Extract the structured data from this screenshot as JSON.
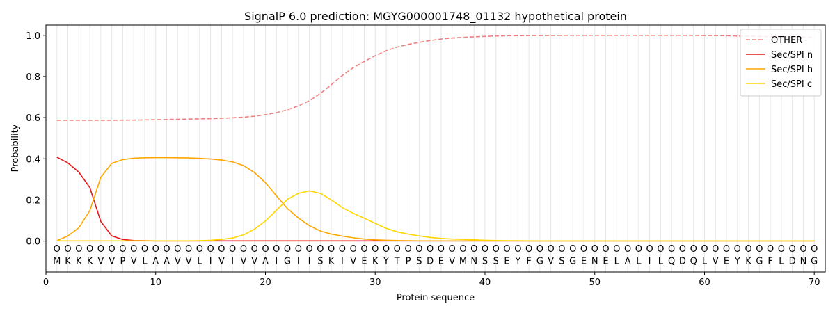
{
  "chart_data": {
    "type": "line",
    "title": "SignalP 6.0 prediction: MGYG000001748_01132 hypothetical protein",
    "xlabel": "Protein sequence",
    "ylabel": "Probability",
    "xlim": [
      0,
      71
    ],
    "ylim": [
      -0.15,
      1.05
    ],
    "xticks": [
      0,
      10,
      20,
      30,
      40,
      50,
      60,
      70
    ],
    "yticks": [
      0.0,
      0.2,
      0.4,
      0.6,
      0.8,
      1.0
    ],
    "ytick_labels": [
      "0.0",
      "0.2",
      "0.4",
      "0.6",
      "0.8",
      "1.0"
    ],
    "legend_position": "top-right",
    "x": [
      1,
      2,
      3,
      4,
      5,
      6,
      7,
      8,
      9,
      10,
      11,
      12,
      13,
      14,
      15,
      16,
      17,
      18,
      19,
      20,
      21,
      22,
      23,
      24,
      25,
      26,
      27,
      28,
      29,
      30,
      31,
      32,
      33,
      34,
      35,
      36,
      37,
      38,
      39,
      40,
      41,
      42,
      43,
      44,
      45,
      46,
      47,
      48,
      49,
      50,
      51,
      52,
      53,
      54,
      55,
      56,
      57,
      58,
      59,
      60,
      61,
      62,
      63,
      64,
      65,
      66,
      67,
      68,
      69,
      70
    ],
    "sequence": [
      "M",
      "K",
      "K",
      "K",
      "V",
      "V",
      "P",
      "V",
      "L",
      "A",
      "A",
      "V",
      "V",
      "L",
      "I",
      "V",
      "I",
      "V",
      "V",
      "A",
      "I",
      "G",
      "I",
      "I",
      "S",
      "K",
      "I",
      "V",
      "E",
      "K",
      "Y",
      "T",
      "P",
      "S",
      "D",
      "E",
      "V",
      "M",
      "N",
      "S",
      "S",
      "E",
      "Y",
      "F",
      "G",
      "V",
      "S",
      "G",
      "E",
      "N",
      "E",
      "L",
      "A",
      "L",
      "I",
      "L",
      "Q",
      "D",
      "Q",
      "L",
      "V",
      "E",
      "Y",
      "K",
      "G",
      "F",
      "L",
      "D",
      "N",
      "G"
    ],
    "position_marker": "O",
    "series": [
      {
        "name": "OTHER",
        "color": "#f08080",
        "dashed": true,
        "values": [
          0.587,
          0.587,
          0.587,
          0.587,
          0.587,
          0.587,
          0.588,
          0.588,
          0.589,
          0.59,
          0.591,
          0.592,
          0.593,
          0.594,
          0.595,
          0.597,
          0.599,
          0.602,
          0.607,
          0.614,
          0.624,
          0.638,
          0.657,
          0.682,
          0.717,
          0.76,
          0.805,
          0.843,
          0.873,
          0.901,
          0.925,
          0.943,
          0.956,
          0.966,
          0.975,
          0.982,
          0.987,
          0.99,
          0.993,
          0.995,
          0.997,
          0.998,
          0.998,
          0.999,
          0.999,
          0.999,
          1.0,
          1.0,
          1.0,
          1.0,
          1.0,
          1.0,
          1.0,
          1.0,
          1.0,
          1.0,
          1.0,
          1.0,
          1.0,
          0.999,
          0.999,
          0.998,
          0.997,
          0.996,
          0.995,
          0.994,
          0.993,
          0.992,
          0.991,
          0.99
        ]
      },
      {
        "name": "Sec/SPI n",
        "color": "#e31a1c",
        "dashed": false,
        "values": [
          0.408,
          0.38,
          0.335,
          0.26,
          0.095,
          0.025,
          0.008,
          0.003,
          0.002,
          0.001,
          0.001,
          0.001,
          0.001,
          0.001,
          0.001,
          0.001,
          0.001,
          0.001,
          0.001,
          0.001,
          0.001,
          0.001,
          0.001,
          0.001,
          0.001,
          0.001,
          0.001,
          0.001,
          0.001,
          0.001,
          0.001,
          0.001,
          0.001,
          0.001,
          0.001,
          0.001,
          0.001,
          0.001,
          0.001,
          0.001,
          0.001,
          0.001,
          0.001,
          0.001,
          0.001,
          0.001,
          0.001,
          0.001,
          0.001,
          0.001,
          0.001,
          0.001,
          0.001,
          0.001,
          0.001,
          0.001,
          0.001,
          0.001,
          0.001,
          0.001,
          0.001,
          0.001,
          0.001,
          0.001,
          0.001,
          0.001,
          0.001,
          0.001,
          0.001,
          0.001
        ]
      },
      {
        "name": "Sec/SPI h",
        "color": "#ffa500",
        "dashed": false,
        "values": [
          0.002,
          0.025,
          0.065,
          0.148,
          0.31,
          0.378,
          0.396,
          0.403,
          0.405,
          0.406,
          0.406,
          0.405,
          0.404,
          0.402,
          0.399,
          0.394,
          0.385,
          0.367,
          0.333,
          0.284,
          0.22,
          0.158,
          0.112,
          0.075,
          0.049,
          0.034,
          0.024,
          0.016,
          0.01,
          0.006,
          0.004,
          0.003,
          0.002,
          0.001,
          0.001,
          0.001,
          0.001,
          0.001,
          0.001,
          0.001,
          0.001,
          0.001,
          0.001,
          0.001,
          0.001,
          0.001,
          0.001,
          0.001,
          0.001,
          0.001,
          0.001,
          0.001,
          0.001,
          0.001,
          0.001,
          0.001,
          0.001,
          0.001,
          0.001,
          0.001,
          0.001,
          0.001,
          0.001,
          0.001,
          0.001,
          0.001,
          0.001,
          0.001,
          0.001,
          0.001
        ]
      },
      {
        "name": "Sec/SPI c",
        "color": "#ffd700",
        "dashed": false,
        "values": [
          0.001,
          0.001,
          0.001,
          0.001,
          0.001,
          0.001,
          0.001,
          0.001,
          0.001,
          0.001,
          0.001,
          0.001,
          0.001,
          0.002,
          0.004,
          0.008,
          0.015,
          0.03,
          0.058,
          0.098,
          0.15,
          0.203,
          0.232,
          0.244,
          0.232,
          0.2,
          0.163,
          0.135,
          0.111,
          0.086,
          0.062,
          0.045,
          0.034,
          0.025,
          0.018,
          0.013,
          0.01,
          0.008,
          0.006,
          0.004,
          0.003,
          0.002,
          0.002,
          0.001,
          0.001,
          0.001,
          0.001,
          0.001,
          0.001,
          0.001,
          0.001,
          0.001,
          0.001,
          0.001,
          0.001,
          0.001,
          0.001,
          0.001,
          0.001,
          0.001,
          0.001,
          0.001,
          0.001,
          0.001,
          0.001,
          0.001,
          0.001,
          0.001,
          0.001,
          0.001
        ]
      }
    ]
  }
}
